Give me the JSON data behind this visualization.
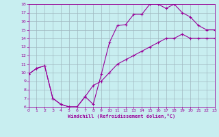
{
  "xlabel": "Windchill (Refroidissement éolien,°C)",
  "bg_color": "#c8eef0",
  "line_color": "#990099",
  "grid_color": "#a0b8c0",
  "xlim": [
    0,
    23
  ],
  "ylim": [
    6,
    18
  ],
  "xticks": [
    0,
    1,
    2,
    3,
    4,
    5,
    6,
    7,
    8,
    9,
    10,
    11,
    12,
    13,
    14,
    15,
    16,
    17,
    18,
    19,
    20,
    21,
    22,
    23
  ],
  "yticks": [
    6,
    7,
    8,
    9,
    10,
    11,
    12,
    13,
    14,
    15,
    16,
    17,
    18
  ],
  "line1_x": [
    0,
    1,
    2,
    3,
    4,
    5,
    6,
    7,
    8,
    9,
    10,
    11,
    12,
    13,
    14,
    15,
    16,
    17,
    18,
    19,
    20,
    21,
    22,
    23
  ],
  "line1_y": [
    9.8,
    10.5,
    10.8,
    7.0,
    6.3,
    6.0,
    6.0,
    7.2,
    6.3,
    9.8,
    13.5,
    15.5,
    15.6,
    16.8,
    16.8,
    18.0,
    18.0,
    17.5,
    18.0,
    17.0,
    16.5,
    15.5,
    15.0,
    15.0
  ],
  "line2_x": [
    0,
    1,
    2,
    3,
    4,
    5,
    6,
    7,
    8,
    9,
    10,
    11,
    12,
    13,
    14,
    15,
    16,
    17,
    18,
    19,
    20,
    21,
    22,
    23
  ],
  "line2_y": [
    9.8,
    10.5,
    10.8,
    7.0,
    6.3,
    6.0,
    6.0,
    7.2,
    8.5,
    9.0,
    10.0,
    11.0,
    11.5,
    12.0,
    12.5,
    13.0,
    13.5,
    14.0,
    14.0,
    14.5,
    14.0,
    14.0,
    14.0,
    14.0
  ]
}
